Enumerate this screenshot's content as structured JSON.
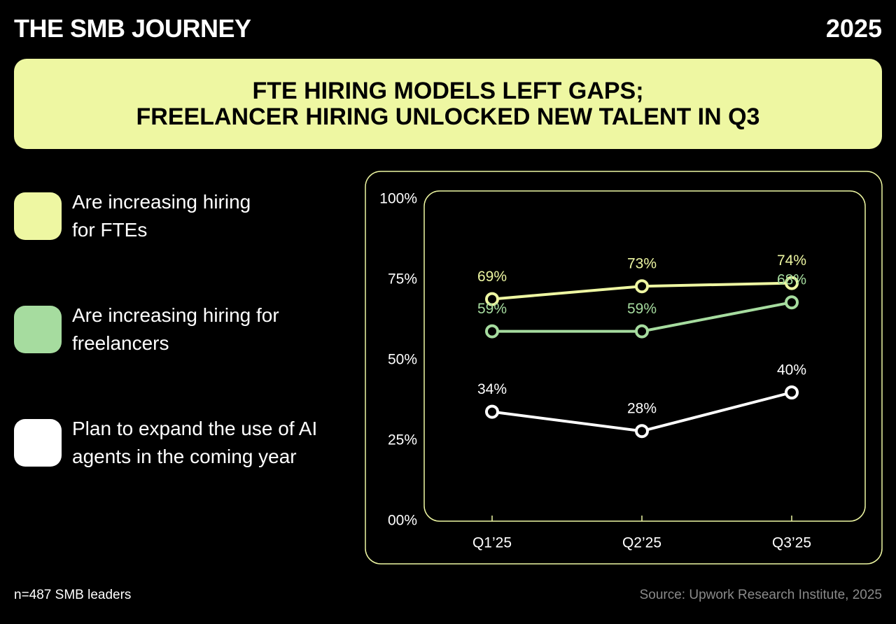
{
  "header": {
    "title": "THE SMB JOURNEY",
    "year": "2025"
  },
  "chart_data": {
    "type": "line",
    "title": "FTE HIRING MODELS LEFT GAPS;\nFREELANCER HIRING UNLOCKED NEW TALENT IN Q3",
    "categories": [
      "Q1’25",
      "Q2’25",
      "Q3’25"
    ],
    "series": [
      {
        "name": "Are increasing hiring\nfor FTEs",
        "color": "#eef7a2",
        "values": [
          69,
          73,
          74
        ],
        "value_labels": [
          "69%",
          "73%",
          "74%"
        ]
      },
      {
        "name": "Are increasing hiring for\nfreelancers",
        "color": "#a6dc9f",
        "values": [
          59,
          59,
          68
        ],
        "value_labels": [
          "59%",
          "59%",
          "68%"
        ]
      },
      {
        "name": "Plan to expand the use of AI\nagents in the coming year",
        "color": "#ffffff",
        "values": [
          34,
          28,
          40
        ],
        "value_labels": [
          "34%",
          "28%",
          "40%"
        ]
      }
    ],
    "ylim": [
      0,
      100
    ],
    "yticks": [
      {
        "value": 0,
        "label": "00%"
      },
      {
        "value": 25,
        "label": "25%"
      },
      {
        "value": 50,
        "label": "50%"
      },
      {
        "value": 75,
        "label": "75%"
      },
      {
        "value": 100,
        "label": "100%"
      }
    ]
  },
  "footer": {
    "note": "n=487 SMB leaders",
    "source": "Source: Upwork Research Institute, 2025"
  }
}
